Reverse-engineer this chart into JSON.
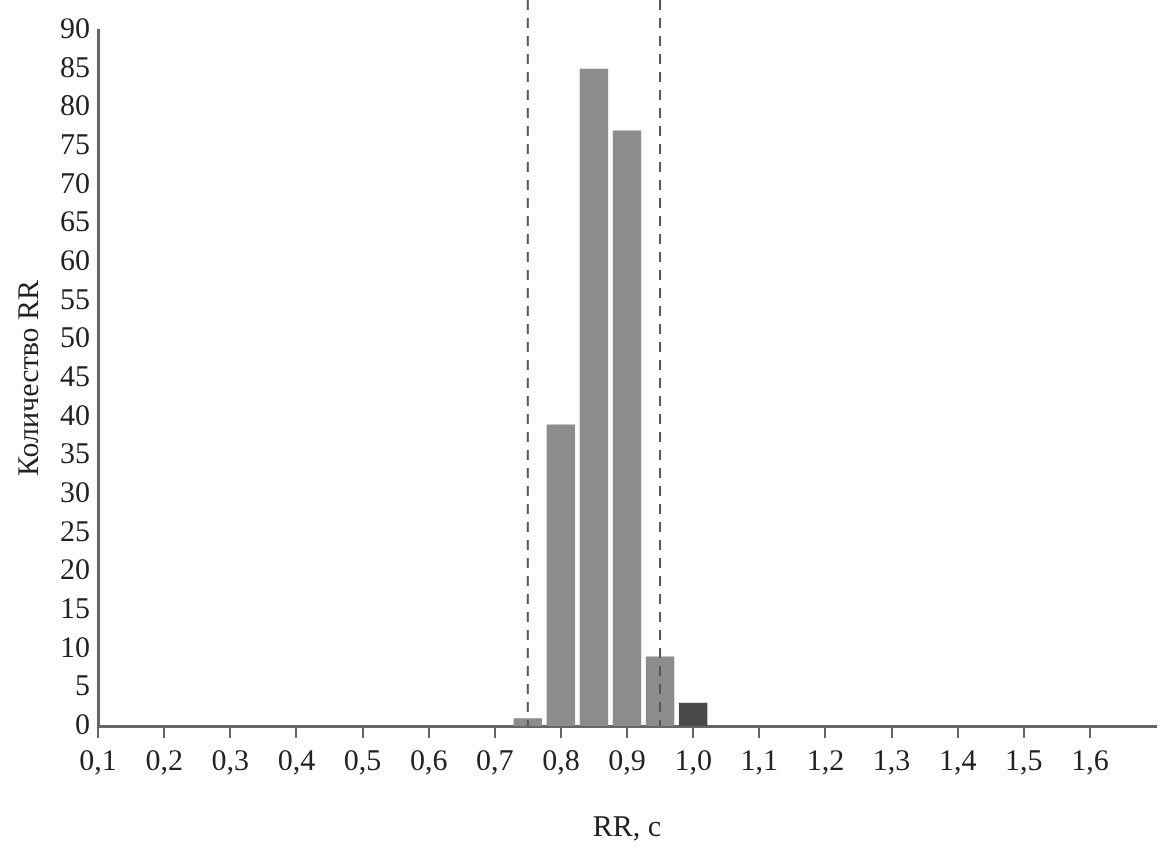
{
  "chart_data": {
    "type": "histogram",
    "xlabel": "RR, с",
    "ylabel": "Количество RR",
    "bins": [
      0.725,
      0.775,
      0.825,
      0.875,
      0.925,
      0.975,
      1.025
    ],
    "values": [
      1,
      39,
      85,
      77,
      9,
      3
    ],
    "colors": [
      "#8c8c8c",
      "#8c8c8c",
      "#8c8c8c",
      "#8c8c8c",
      "#8c8c8c",
      "#4a4a4a"
    ],
    "xlim": [
      0.1,
      1.7
    ],
    "xticks": [
      {
        "value": 0.1,
        "label": "0,1"
      },
      {
        "value": 0.2,
        "label": "0,2"
      },
      {
        "value": 0.3,
        "label": "0,3"
      },
      {
        "value": 0.4,
        "label": "0,4"
      },
      {
        "value": 0.5,
        "label": "0,5"
      },
      {
        "value": 0.6,
        "label": "0,6"
      },
      {
        "value": 0.7,
        "label": "0,7"
      },
      {
        "value": 0.8,
        "label": "0,8"
      },
      {
        "value": 0.9,
        "label": "0,9"
      },
      {
        "value": 1.0,
        "label": "1,0"
      },
      {
        "value": 1.1,
        "label": "1,1"
      },
      {
        "value": 1.2,
        "label": "1,2"
      },
      {
        "value": 1.3,
        "label": "1,3"
      },
      {
        "value": 1.4,
        "label": "1,4"
      },
      {
        "value": 1.5,
        "label": "1,5"
      },
      {
        "value": 1.6,
        "label": "1,6"
      }
    ],
    "ylim": [
      0,
      90
    ],
    "yticks": [
      0,
      5,
      10,
      15,
      20,
      25,
      30,
      35,
      40,
      45,
      50,
      55,
      60,
      65,
      70,
      75,
      80,
      85,
      90
    ],
    "ref_lines": [
      {
        "axis": "x",
        "value": 0.75,
        "label": null,
        "color": "#555555",
        "line_style": "dashed"
      },
      {
        "axis": "x",
        "value": 0.95,
        "label": null,
        "color": "#555555",
        "line_style": "dashed"
      }
    ],
    "grid": false,
    "legend": false
  }
}
